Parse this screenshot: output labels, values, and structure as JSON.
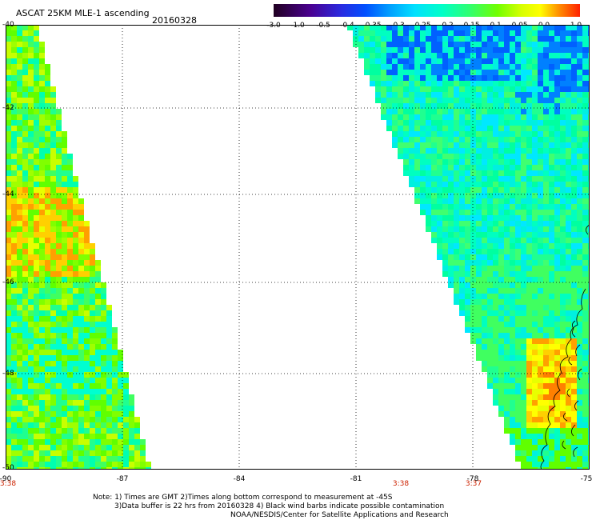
{
  "header": {
    "title": "ASCAT 25KM MLE-1 ascending",
    "date": "20160328"
  },
  "colorbar": {
    "tick_labels": [
      "-3.0",
      "-1.0",
      "-0.5",
      "-0.4",
      "-0.35",
      "-0.3",
      "-0.25",
      "-0.2",
      "-0.15",
      "-0.1",
      "-0.05",
      "0.0",
      "1.0"
    ],
    "colors": [
      "#2a0030",
      "#5a00a0",
      "#2020e8",
      "#0060ff",
      "#00a8ff",
      "#00e8ff",
      "#00ffd0",
      "#40ff80",
      "#60ff00",
      "#c8ff00",
      "#ffff00",
      "#ff8000",
      "#ff2000"
    ]
  },
  "axes": {
    "x_ticks": [
      "-90",
      "-87",
      "-84",
      "-81",
      "-78",
      "-75"
    ],
    "y_ticks": [
      "-40",
      "-42",
      "-44",
      "-46",
      "-48",
      "-50"
    ]
  },
  "pass_times": {
    "left": "3:38",
    "mid": "3:38",
    "right": "3:37"
  },
  "notes": {
    "line1": "Note: 1) Times are GMT 2)Times along bottom correspond to measurement at -45S",
    "line2": "3)Data buffer is 22 hrs from 20160328 4) Black wind barbs indicate possible contamination",
    "line3": "NOAA/NESDIS/Center for Satellite Applications and Research"
  }
}
